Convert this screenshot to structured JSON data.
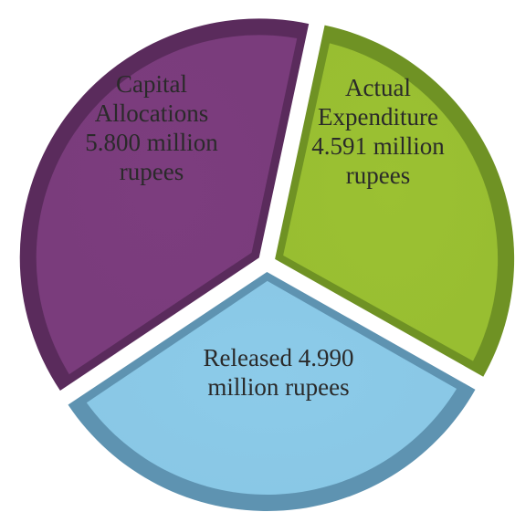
{
  "chart_data": {
    "type": "pie",
    "title": "",
    "slices": [
      {
        "label_lines": [
          "Actual",
          "Expenditure",
          "4.591 million",
          "rupees"
        ],
        "value": 4.591,
        "color": "#9bc132",
        "edge": "#6f9224"
      },
      {
        "label_lines": [
          "Released 4.990",
          "million rupees"
        ],
        "value": 4.99,
        "color": "#8ccbe9",
        "edge": "#5e93b1"
      },
      {
        "label_lines": [
          "Capital",
          "Allocations",
          "5.800 million",
          "rupees"
        ],
        "value": 5.8,
        "color": "#7c3d7e",
        "edge": "#5a2b5c"
      }
    ]
  }
}
